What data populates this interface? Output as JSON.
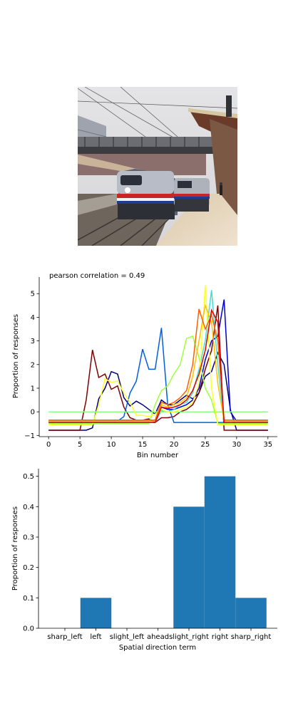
{
  "image": {
    "subject": "train-station-photo"
  },
  "chart_data": [
    {
      "type": "line",
      "title": "pearson correlation = 0.49",
      "xlabel": "Bin number",
      "ylabel": "Proportion of responses",
      "xlim": [
        -1.5,
        36.5
      ],
      "ylim": [
        -1.05,
        5.7
      ],
      "xticks": [
        0,
        5,
        10,
        15,
        20,
        25,
        30,
        35
      ],
      "yticks": [
        -1,
        0,
        1,
        2,
        3,
        4,
        5
      ],
      "grid": false,
      "series": [
        {
          "color": "#000080",
          "x": [
            0,
            1,
            2,
            3,
            4,
            5,
            6,
            7,
            8,
            9,
            10,
            11,
            12,
            13,
            14,
            15,
            16,
            17,
            18,
            19,
            20,
            21,
            22,
            23,
            24,
            25,
            26,
            27,
            28,
            29,
            30,
            31,
            32,
            33,
            34,
            35
          ],
          "y": [
            -0.78,
            -0.78,
            -0.78,
            -0.78,
            -0.78,
            -0.78,
            -0.78,
            -0.68,
            0.55,
            1.0,
            1.7,
            1.6,
            0.6,
            0.25,
            0.45,
            0.3,
            0.1,
            -0.1,
            0.5,
            0.3,
            0.3,
            0.5,
            0.7,
            0.55,
            0.8,
            1.5,
            1.7,
            2.5,
            2.0,
            0.1,
            -0.78,
            -0.78,
            -0.78,
            -0.78,
            -0.78,
            -0.78
          ]
        },
        {
          "color": "#800000",
          "x": [
            0,
            1,
            2,
            3,
            4,
            5,
            6,
            7,
            8,
            9,
            10,
            11,
            12,
            13,
            14,
            15,
            16,
            17,
            18,
            19,
            20,
            21,
            22,
            23,
            24,
            25,
            26,
            27,
            28,
            29,
            30,
            31,
            32,
            33,
            34,
            35
          ],
          "y": [
            -0.78,
            -0.78,
            -0.78,
            -0.78,
            -0.78,
            -0.78,
            0.5,
            2.62,
            1.45,
            1.6,
            0.95,
            1.1,
            0.2,
            -0.25,
            -0.35,
            -0.35,
            -0.3,
            -0.45,
            -0.25,
            -0.25,
            -0.2,
            0.0,
            0.1,
            0.3,
            0.8,
            1.8,
            2.6,
            4.5,
            -0.78,
            -0.78,
            -0.78,
            -0.78,
            -0.78,
            -0.78,
            -0.78,
            -0.78
          ]
        },
        {
          "color": "#0000d0",
          "x": [
            0,
            1,
            2,
            3,
            4,
            5,
            6,
            7,
            8,
            9,
            10,
            11,
            12,
            13,
            14,
            15,
            16,
            17,
            18,
            19,
            20,
            21,
            22,
            23,
            24,
            25,
            26,
            27,
            28,
            29,
            30,
            31,
            32,
            33,
            34,
            35
          ],
          "y": [
            -0.4,
            -0.4,
            -0.4,
            -0.4,
            -0.4,
            -0.4,
            -0.4,
            -0.4,
            -0.4,
            -0.4,
            -0.4,
            -0.4,
            -0.4,
            -0.4,
            -0.4,
            -0.4,
            -0.4,
            -0.4,
            0.2,
            0.1,
            0.1,
            0.2,
            0.3,
            0.5,
            1.0,
            2.2,
            3.0,
            3.2,
            4.75,
            0.0,
            -0.4,
            -0.4,
            -0.4,
            -0.4,
            -0.4,
            -0.4
          ]
        },
        {
          "color": "#0060e0",
          "x": [
            0,
            1,
            2,
            3,
            4,
            5,
            6,
            7,
            8,
            9,
            10,
            11,
            12,
            13,
            14,
            15,
            16,
            17,
            18,
            19,
            20,
            21,
            22,
            23,
            24,
            25,
            26,
            27,
            28,
            29,
            30,
            31,
            32,
            33,
            34,
            35
          ],
          "y": [
            -0.4,
            -0.4,
            -0.4,
            -0.4,
            -0.4,
            -0.4,
            -0.4,
            -0.4,
            -0.4,
            -0.4,
            -0.4,
            -0.4,
            -0.2,
            0.8,
            1.3,
            2.65,
            1.8,
            1.8,
            3.55,
            0.3,
            -0.45,
            -0.45,
            -0.45,
            -0.45,
            -0.45,
            -0.45,
            -0.45,
            -0.45,
            -0.45,
            -0.45,
            -0.45,
            -0.45,
            -0.45,
            -0.45,
            -0.45,
            -0.45
          ]
        },
        {
          "color": "#40e0d0",
          "x": [
            0,
            1,
            2,
            3,
            4,
            5,
            6,
            7,
            8,
            9,
            10,
            11,
            12,
            13,
            14,
            15,
            16,
            17,
            18,
            19,
            20,
            21,
            22,
            23,
            24,
            25,
            26,
            27,
            28,
            29,
            30,
            31,
            32,
            33,
            34,
            35
          ],
          "y": [
            -0.45,
            -0.45,
            -0.45,
            -0.45,
            -0.45,
            -0.45,
            -0.45,
            -0.45,
            -0.45,
            -0.45,
            -0.45,
            -0.45,
            -0.45,
            -0.45,
            -0.45,
            -0.45,
            -0.45,
            -0.45,
            0.05,
            0.0,
            0.1,
            0.3,
            0.4,
            0.8,
            1.8,
            3.0,
            5.15,
            2.0,
            -0.45,
            -0.45,
            -0.45,
            -0.45,
            -0.45,
            -0.45,
            -0.45,
            -0.45
          ]
        },
        {
          "color": "#8cff8c",
          "x": [
            0,
            1,
            2,
            3,
            4,
            5,
            6,
            7,
            8,
            9,
            10,
            11,
            12,
            13,
            14,
            15,
            16,
            17,
            18,
            19,
            20,
            21,
            22,
            23,
            24,
            25,
            26,
            27,
            28,
            29,
            30,
            31,
            32,
            33,
            34,
            35
          ],
          "y": [
            0,
            0,
            0,
            0,
            0,
            0,
            0,
            0,
            0,
            0,
            0,
            0,
            0,
            0,
            0,
            0,
            0,
            0,
            0,
            0,
            0,
            0,
            0,
            0,
            0,
            0,
            0,
            0,
            0,
            0,
            0,
            0,
            0,
            0,
            0,
            0
          ]
        },
        {
          "color": "#a0ff40",
          "x": [
            0,
            1,
            2,
            3,
            4,
            5,
            6,
            7,
            8,
            9,
            10,
            11,
            12,
            13,
            14,
            15,
            16,
            17,
            18,
            19,
            20,
            21,
            22,
            23,
            24,
            25,
            26,
            27,
            28,
            29,
            30,
            31,
            32,
            33,
            34,
            35
          ],
          "y": [
            -0.5,
            -0.5,
            -0.5,
            -0.5,
            -0.5,
            -0.5,
            -0.5,
            -0.5,
            -0.5,
            -0.5,
            -0.5,
            -0.5,
            -0.5,
            -0.5,
            -0.5,
            -0.5,
            -0.5,
            0.3,
            0.9,
            1.1,
            1.6,
            2.0,
            3.1,
            3.2,
            2.3,
            1.0,
            0.5,
            -0.5,
            -0.5,
            -0.5,
            -0.5,
            -0.5,
            -0.5,
            -0.5,
            -0.5,
            -0.5
          ]
        },
        {
          "color": "#ffff30",
          "x": [
            0,
            1,
            2,
            3,
            4,
            5,
            6,
            7,
            8,
            9,
            10,
            11,
            12,
            13,
            14,
            15,
            16,
            17,
            18,
            19,
            20,
            21,
            22,
            23,
            24,
            25,
            26,
            27,
            28,
            29,
            30,
            31,
            32,
            33,
            34,
            35
          ],
          "y": [
            -0.55,
            -0.55,
            -0.55,
            -0.55,
            -0.55,
            -0.55,
            -0.55,
            -0.55,
            0.3,
            1.4,
            1.25,
            1.3,
            0.8,
            0.4,
            -0.15,
            -0.15,
            -0.2,
            -0.1,
            0.1,
            0.0,
            0.0,
            0.1,
            0.2,
            0.4,
            1.2,
            5.35,
            1.0,
            -0.55,
            -0.55,
            -0.55,
            -0.55,
            -0.55,
            -0.55,
            -0.55,
            -0.55,
            -0.55
          ]
        },
        {
          "color": "#ffc000",
          "x": [
            0,
            1,
            2,
            3,
            4,
            5,
            6,
            7,
            8,
            9,
            10,
            11,
            12,
            13,
            14,
            15,
            16,
            17,
            18,
            19,
            20,
            21,
            22,
            23,
            24,
            25,
            26,
            27,
            28,
            29,
            30,
            31,
            32,
            33,
            34,
            35
          ],
          "y": [
            -0.4,
            -0.4,
            -0.4,
            -0.4,
            -0.4,
            -0.4,
            -0.4,
            -0.4,
            -0.4,
            -0.4,
            -0.4,
            -0.4,
            -0.4,
            -0.4,
            -0.4,
            -0.4,
            -0.4,
            -0.4,
            0.3,
            0.2,
            0.3,
            0.4,
            0.6,
            1.5,
            3.0,
            4.5,
            3.8,
            1.2,
            -0.4,
            -0.4,
            -0.4,
            -0.4,
            -0.4,
            -0.4,
            -0.4,
            -0.4
          ]
        },
        {
          "color": "#ff6000",
          "x": [
            0,
            1,
            2,
            3,
            4,
            5,
            6,
            7,
            8,
            9,
            10,
            11,
            12,
            13,
            14,
            15,
            16,
            17,
            18,
            19,
            20,
            21,
            22,
            23,
            24,
            25,
            26,
            27,
            28,
            29,
            30,
            31,
            32,
            33,
            34,
            35
          ],
          "y": [
            -0.35,
            -0.35,
            -0.35,
            -0.35,
            -0.35,
            -0.35,
            -0.35,
            -0.35,
            -0.35,
            -0.35,
            -0.35,
            -0.35,
            -0.35,
            -0.35,
            -0.35,
            -0.35,
            -0.35,
            -0.35,
            0.4,
            0.3,
            0.4,
            0.6,
            0.9,
            2.0,
            4.35,
            3.5,
            4.1,
            3.0,
            -0.35,
            -0.35,
            -0.35,
            -0.35,
            -0.35,
            -0.35,
            -0.35,
            -0.35
          ]
        },
        {
          "color": "#e00000",
          "x": [
            0,
            1,
            2,
            3,
            4,
            5,
            6,
            7,
            8,
            9,
            10,
            11,
            12,
            13,
            14,
            15,
            16,
            17,
            18,
            19,
            20,
            21,
            22,
            23,
            24,
            25,
            26,
            27,
            28,
            29,
            30,
            31,
            32,
            33,
            34,
            35
          ],
          "y": [
            -0.45,
            -0.45,
            -0.45,
            -0.45,
            -0.45,
            -0.45,
            -0.45,
            -0.45,
            -0.45,
            -0.45,
            -0.45,
            -0.45,
            -0.45,
            -0.45,
            -0.45,
            -0.45,
            -0.45,
            -0.45,
            0.2,
            0.15,
            0.2,
            0.3,
            0.5,
            0.9,
            1.6,
            2.6,
            4.3,
            3.8,
            -0.45,
            -0.45,
            -0.45,
            -0.45,
            -0.45,
            -0.45,
            -0.45,
            -0.45
          ]
        }
      ]
    },
    {
      "type": "bar",
      "xlabel": "Spatial direction term",
      "ylabel": "Proportion of responses",
      "categories": [
        "sharp_left",
        "left",
        "slight_left",
        "ahead",
        "slight_right",
        "right",
        "sharp_right"
      ],
      "values": [
        0.0,
        0.1,
        0.0,
        0.0,
        0.4,
        0.5,
        0.1
      ],
      "ylim": [
        0,
        0.525
      ],
      "yticks": [
        0.0,
        0.1,
        0.2,
        0.3,
        0.4,
        0.5
      ],
      "color": "#1f77b4",
      "grid": false
    }
  ]
}
